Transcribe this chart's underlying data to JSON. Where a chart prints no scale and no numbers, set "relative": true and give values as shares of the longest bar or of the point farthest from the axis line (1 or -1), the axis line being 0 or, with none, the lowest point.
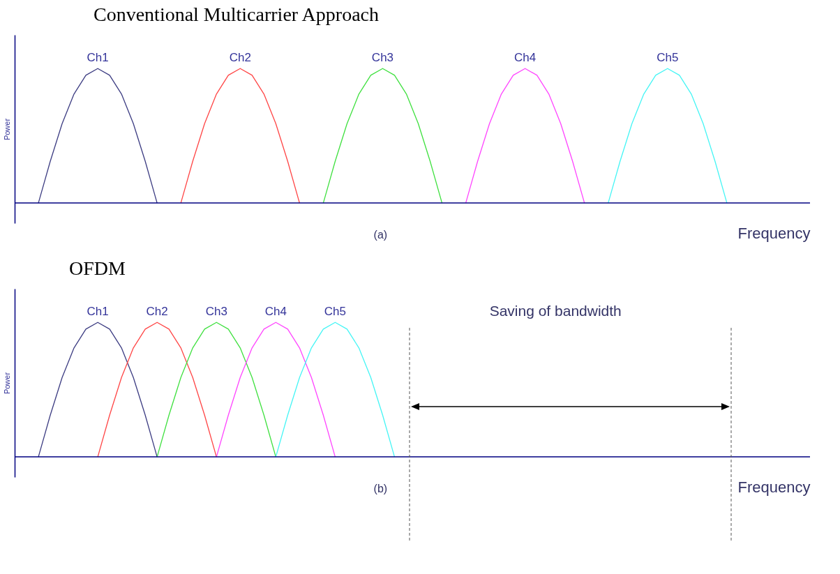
{
  "chart_data": [
    {
      "type": "line",
      "title": "Conventional Multicarrier Approach",
      "xlabel": "Frequency",
      "ylabel": "Power",
      "relative": true,
      "annotations": [
        "(a)"
      ],
      "categories": [
        null,
        null,
        null,
        null,
        null,
        null,
        null,
        null,
        null,
        null,
        null,
        null,
        null,
        null,
        null,
        null,
        null,
        null,
        null,
        null,
        null,
        null,
        null,
        null,
        null,
        null,
        null,
        null,
        null,
        null,
        null,
        null,
        null,
        null,
        null,
        null,
        null,
        null,
        null,
        null,
        null,
        null,
        null,
        null,
        null,
        null,
        null,
        null,
        null,
        null,
        null,
        null,
        null,
        null,
        null,
        null,
        null,
        null,
        null,
        null,
        null,
        null,
        null,
        null,
        null,
        null,
        null,
        null
      ],
      "series": [
        {
          "name": "Ch1",
          "color": "#3c3c82",
          "values": [
            null,
            null,
            0,
            0.31,
            0.59,
            0.81,
            0.95,
            1,
            0.95,
            0.81,
            0.59,
            0.31,
            0,
            null,
            null,
            null,
            null,
            null,
            null,
            null,
            null,
            null,
            null,
            null,
            null,
            null,
            null,
            null,
            null,
            null,
            null,
            null,
            null,
            null,
            null,
            null,
            null,
            null,
            null,
            null,
            null,
            null,
            null,
            null,
            null,
            null,
            null,
            null,
            null,
            null,
            null,
            null,
            null,
            null,
            null,
            null,
            null,
            null,
            null,
            null,
            null,
            null,
            null,
            null,
            null,
            null,
            null,
            null
          ]
        },
        {
          "name": "Ch2",
          "color": "#ff4545",
          "values": [
            null,
            null,
            null,
            null,
            null,
            null,
            null,
            null,
            null,
            null,
            null,
            null,
            null,
            null,
            0,
            0.31,
            0.59,
            0.81,
            0.95,
            1,
            0.95,
            0.81,
            0.59,
            0.31,
            0,
            null,
            null,
            null,
            null,
            null,
            null,
            null,
            null,
            null,
            null,
            null,
            null,
            null,
            null,
            null,
            null,
            null,
            null,
            null,
            null,
            null,
            null,
            null,
            null,
            null,
            null,
            null,
            null,
            null,
            null,
            null,
            null,
            null,
            null,
            null,
            null,
            null,
            null,
            null,
            null,
            null,
            null,
            null
          ]
        },
        {
          "name": "Ch3",
          "color": "#3fe03f",
          "values": [
            null,
            null,
            null,
            null,
            null,
            null,
            null,
            null,
            null,
            null,
            null,
            null,
            null,
            null,
            null,
            null,
            null,
            null,
            null,
            null,
            null,
            null,
            null,
            null,
            null,
            null,
            0,
            0.31,
            0.59,
            0.81,
            0.95,
            1,
            0.95,
            0.81,
            0.59,
            0.31,
            0,
            null,
            null,
            null,
            null,
            null,
            null,
            null,
            null,
            null,
            null,
            null,
            null,
            null,
            null,
            null,
            null,
            null,
            null,
            null,
            null,
            null,
            null,
            null,
            null,
            null,
            null,
            null,
            null,
            null,
            null,
            null
          ]
        },
        {
          "name": "Ch4",
          "color": "#ff45ff",
          "values": [
            null,
            null,
            null,
            null,
            null,
            null,
            null,
            null,
            null,
            null,
            null,
            null,
            null,
            null,
            null,
            null,
            null,
            null,
            null,
            null,
            null,
            null,
            null,
            null,
            null,
            null,
            null,
            null,
            null,
            null,
            null,
            null,
            null,
            null,
            null,
            null,
            null,
            null,
            0,
            0.31,
            0.59,
            0.81,
            0.95,
            1,
            0.95,
            0.81,
            0.59,
            0.31,
            0,
            null,
            null,
            null,
            null,
            null,
            null,
            null,
            null,
            null,
            null,
            null,
            null,
            null,
            null,
            null,
            null,
            null,
            null,
            null
          ]
        },
        {
          "name": "Ch5",
          "color": "#45f5f5",
          "values": [
            null,
            null,
            null,
            null,
            null,
            null,
            null,
            null,
            null,
            null,
            null,
            null,
            null,
            null,
            null,
            null,
            null,
            null,
            null,
            null,
            null,
            null,
            null,
            null,
            null,
            null,
            null,
            null,
            null,
            null,
            null,
            null,
            null,
            null,
            null,
            null,
            null,
            null,
            null,
            null,
            null,
            null,
            null,
            null,
            null,
            null,
            null,
            null,
            null,
            null,
            0,
            0.31,
            0.59,
            0.81,
            0.95,
            1,
            0.95,
            0.81,
            0.59,
            0.31,
            0,
            null,
            null,
            null,
            null,
            null,
            null,
            null
          ]
        }
      ]
    },
    {
      "type": "line",
      "title": "OFDM",
      "xlabel": "Frequency",
      "ylabel": "Power",
      "relative": true,
      "annotations": [
        "Saving of bandwidth",
        "(b)"
      ],
      "categories": [
        null,
        null,
        null,
        null,
        null,
        null,
        null,
        null,
        null,
        null,
        null,
        null,
        null,
        null,
        null,
        null,
        null,
        null,
        null,
        null,
        null,
        null,
        null,
        null,
        null,
        null,
        null,
        null,
        null,
        null,
        null,
        null,
        null,
        null,
        null,
        null,
        null,
        null,
        null,
        null,
        null,
        null,
        null,
        null,
        null,
        null,
        null,
        null,
        null,
        null,
        null,
        null,
        null,
        null,
        null,
        null,
        null,
        null,
        null,
        null,
        null,
        null,
        null,
        null,
        null,
        null,
        null,
        null
      ],
      "series": [
        {
          "name": "Ch1",
          "color": "#3c3c82",
          "values": [
            null,
            null,
            0,
            0.31,
            0.59,
            0.81,
            0.95,
            1,
            0.95,
            0.81,
            0.59,
            0.31,
            0,
            null,
            null,
            null,
            null,
            null,
            null,
            null,
            null,
            null,
            null,
            null,
            null,
            null,
            null,
            null,
            null,
            null,
            null,
            null,
            null,
            null,
            null,
            null,
            null,
            null,
            null,
            null,
            null,
            null,
            null,
            null,
            null,
            null,
            null,
            null,
            null,
            null,
            null,
            null,
            null,
            null,
            null,
            null,
            null,
            null,
            null,
            null,
            null,
            null,
            null,
            null,
            null,
            null,
            null,
            null
          ]
        },
        {
          "name": "Ch2",
          "color": "#ff4545",
          "values": [
            null,
            null,
            null,
            null,
            null,
            null,
            null,
            0,
            0.31,
            0.59,
            0.81,
            0.95,
            1,
            0.95,
            0.81,
            0.59,
            0.31,
            0,
            null,
            null,
            null,
            null,
            null,
            null,
            null,
            null,
            null,
            null,
            null,
            null,
            null,
            null,
            null,
            null,
            null,
            null,
            null,
            null,
            null,
            null,
            null,
            null,
            null,
            null,
            null,
            null,
            null,
            null,
            null,
            null,
            null,
            null,
            null,
            null,
            null,
            null,
            null,
            null,
            null,
            null,
            null,
            null,
            null,
            null,
            null,
            null,
            null,
            null
          ]
        },
        {
          "name": "Ch3",
          "color": "#3fe03f",
          "values": [
            null,
            null,
            null,
            null,
            null,
            null,
            null,
            null,
            null,
            null,
            null,
            null,
            0,
            0.31,
            0.59,
            0.81,
            0.95,
            1,
            0.95,
            0.81,
            0.59,
            0.31,
            0,
            null,
            null,
            null,
            null,
            null,
            null,
            null,
            null,
            null,
            null,
            null,
            null,
            null,
            null,
            null,
            null,
            null,
            null,
            null,
            null,
            null,
            null,
            null,
            null,
            null,
            null,
            null,
            null,
            null,
            null,
            null,
            null,
            null,
            null,
            null,
            null,
            null,
            null,
            null,
            null,
            null,
            null,
            null,
            null,
            null
          ]
        },
        {
          "name": "Ch4",
          "color": "#ff45ff",
          "values": [
            null,
            null,
            null,
            null,
            null,
            null,
            null,
            null,
            null,
            null,
            null,
            null,
            null,
            null,
            null,
            null,
            null,
            0,
            0.31,
            0.59,
            0.81,
            0.95,
            1,
            0.95,
            0.81,
            0.59,
            0.31,
            0,
            null,
            null,
            null,
            null,
            null,
            null,
            null,
            null,
            null,
            null,
            null,
            null,
            null,
            null,
            null,
            null,
            null,
            null,
            null,
            null,
            null,
            null,
            null,
            null,
            null,
            null,
            null,
            null,
            null,
            null,
            null,
            null,
            null,
            null,
            null,
            null,
            null,
            null,
            null,
            null
          ]
        },
        {
          "name": "Ch5",
          "color": "#45f5f5",
          "values": [
            null,
            null,
            null,
            null,
            null,
            null,
            null,
            null,
            null,
            null,
            null,
            null,
            null,
            null,
            null,
            null,
            null,
            null,
            null,
            null,
            null,
            null,
            0,
            0.31,
            0.59,
            0.81,
            0.95,
            1,
            0.95,
            0.81,
            0.59,
            0.31,
            0,
            null,
            null,
            null,
            null,
            null,
            null,
            null,
            null,
            null,
            null,
            null,
            null,
            null,
            null,
            null,
            null,
            null,
            null,
            null,
            null,
            null,
            null,
            null,
            null,
            null,
            null,
            null,
            null,
            null,
            null,
            null,
            null,
            null,
            null,
            null
          ]
        }
      ]
    }
  ]
}
